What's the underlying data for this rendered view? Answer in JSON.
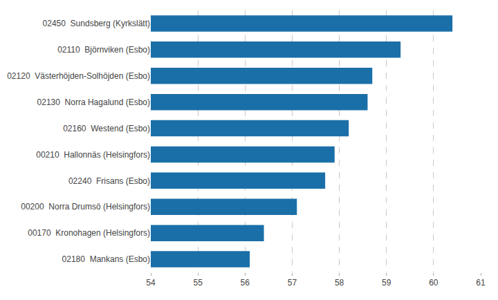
{
  "chart_data": {
    "type": "bar",
    "orientation": "horizontal",
    "categories": [
      "02450  Sundsberg (Kyrkslätt)",
      "02110  Björnviken (Esbo)",
      "02120  Västerhöjden-Solhöjden (Esbo)",
      "02130  Norra Hagalund (Esbo)",
      "02160  Westend (Esbo)",
      "00210  Hallonnäs (Helsingfors)",
      "02240  Frisans (Esbo)",
      "00200  Norra Drumsö (Helsingfors)",
      "00170  Kronohagen (Helsingfors)",
      "02180  Mankans (Esbo)"
    ],
    "values": [
      60.4,
      59.3,
      58.7,
      58.6,
      58.2,
      57.9,
      57.7,
      57.1,
      56.4,
      56.1
    ],
    "color": "#1b6fa8",
    "xlim": [
      54,
      61
    ],
    "xticks": [
      54,
      55,
      56,
      57,
      58,
      59,
      60,
      61
    ],
    "grid": true
  }
}
